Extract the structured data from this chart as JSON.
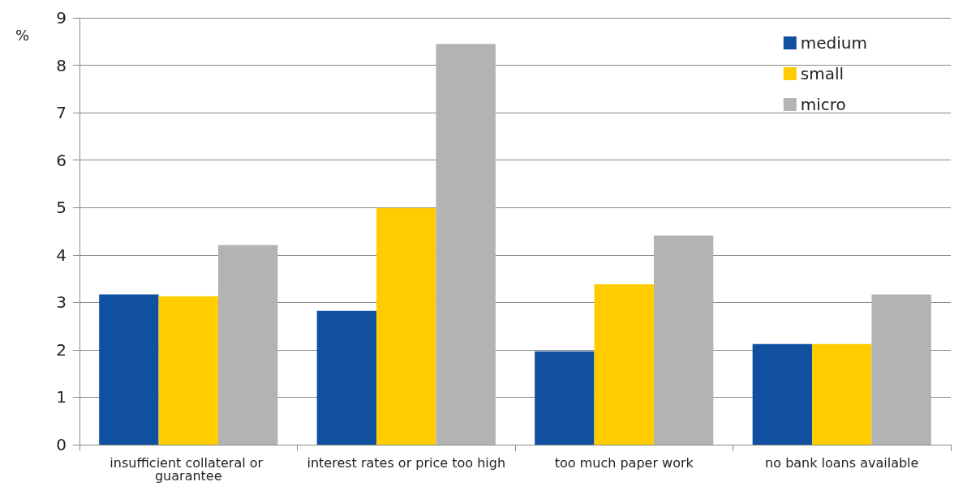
{
  "chart_data": {
    "type": "bar",
    "ylabel": "%",
    "categories": [
      "insufficient collateral or guarantee",
      "interest rates or price too high",
      "too much paper work",
      "no bank loans available"
    ],
    "series": [
      {
        "name": "medium",
        "color": "#1150a0",
        "values": [
          3.17,
          2.82,
          1.97,
          2.12
        ]
      },
      {
        "name": "small",
        "color": "#ffcc00",
        "values": [
          3.13,
          4.99,
          3.38,
          2.12
        ]
      },
      {
        "name": "micro",
        "color": "#b3b3b3",
        "values": [
          4.21,
          8.45,
          4.41,
          3.17
        ]
      }
    ],
    "ylim": [
      0,
      9
    ],
    "yticks": [
      0,
      1,
      2,
      3,
      4,
      5,
      6,
      7,
      8,
      9
    ],
    "grid": "y",
    "legend": "top right"
  }
}
